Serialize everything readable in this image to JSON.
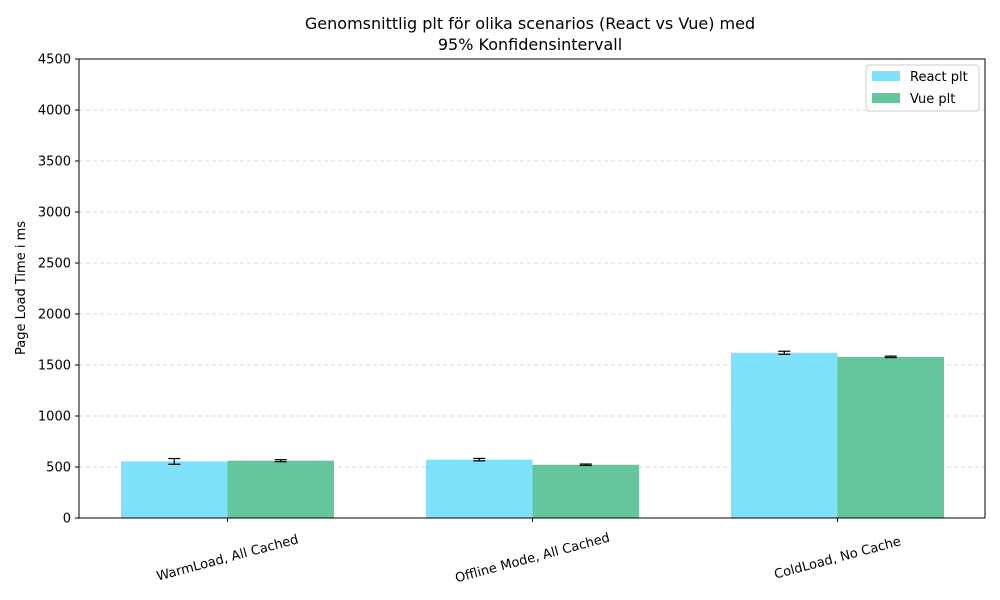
{
  "chart_data": {
    "type": "bar",
    "title_lines": [
      "Genomsnittlig plt för olika scenarios (React vs Vue) med",
      "95% Konfidensintervall"
    ],
    "xlabel": "",
    "ylabel": "Page Load Time i ms",
    "ylim": [
      0,
      4500
    ],
    "yticks": [
      0,
      500,
      1000,
      1500,
      2000,
      2500,
      3000,
      3500,
      4000,
      4500
    ],
    "categories": [
      "WarmLoad, All Cached",
      "Offline Mode, All Cached",
      "ColdLoad, No Cache"
    ],
    "series": [
      {
        "name": "React plt",
        "color": "#80e1fb",
        "values": [
          555,
          572,
          1620
        ],
        "err": [
          28,
          12,
          15
        ]
      },
      {
        "name": "Vue plt",
        "color": "#66c69b",
        "values": [
          562,
          522,
          1580
        ],
        "err": [
          10,
          7,
          7
        ]
      }
    ],
    "grid": "y-dashed",
    "legend_position": "top-right"
  }
}
